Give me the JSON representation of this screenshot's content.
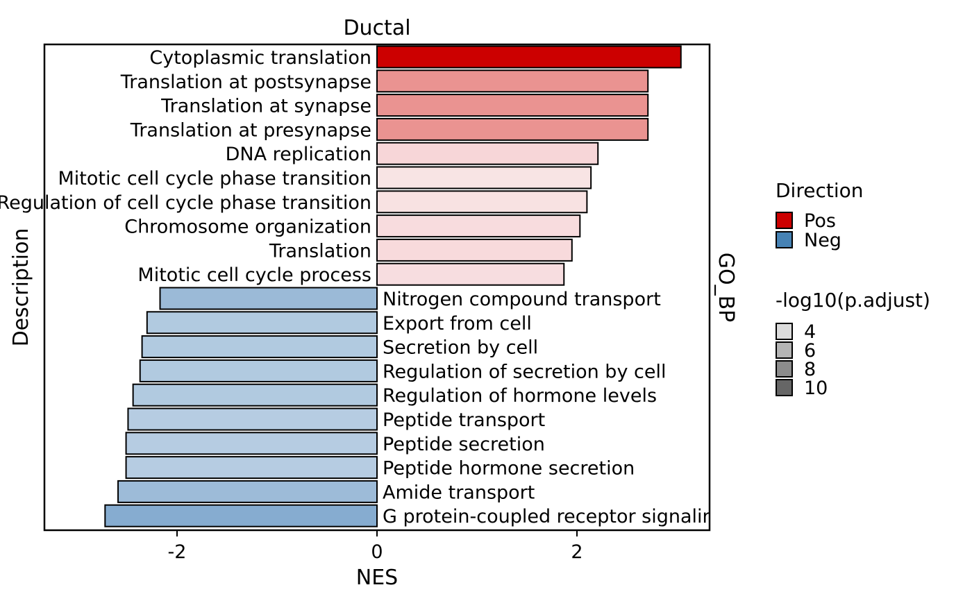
{
  "chart_data": {
    "type": "bar",
    "orientation": "horizontal",
    "title": "Ductal",
    "facet_label": "GO_BP",
    "xlabel": "NES",
    "ylabel": "Description",
    "xlim": [
      -3.33,
      3.33
    ],
    "xticks": [
      -2,
      0,
      2
    ],
    "xtick_labels": [
      "-2",
      "0",
      "2"
    ],
    "grid": false,
    "legend_position": "right",
    "bars": [
      {
        "label": "Cytoplasmic translation",
        "value": 3.04,
        "direction": "Pos",
        "fill": "#cc0000"
      },
      {
        "label": "Translation at postsynapse",
        "value": 2.71,
        "direction": "Pos",
        "fill": "#ea9391"
      },
      {
        "label": "Translation at synapse",
        "value": 2.71,
        "direction": "Pos",
        "fill": "#ea9391"
      },
      {
        "label": "Translation at presynapse",
        "value": 2.71,
        "direction": "Pos",
        "fill": "#ea9391"
      },
      {
        "label": "DNA replication",
        "value": 2.21,
        "direction": "Pos",
        "fill": "#f7d6d8"
      },
      {
        "label": "Mitotic cell cycle phase transition",
        "value": 2.14,
        "direction": "Pos",
        "fill": "#f8e4e4"
      },
      {
        "label": "Regulation of cell cycle phase transition",
        "value": 2.1,
        "direction": "Pos",
        "fill": "#f8e2e2"
      },
      {
        "label": "Chromosome organization",
        "value": 2.03,
        "direction": "Pos",
        "fill": "#f8dcde"
      },
      {
        "label": "Translation",
        "value": 1.95,
        "direction": "Pos",
        "fill": "#f8dadc"
      },
      {
        "label": "Mitotic cell cycle process",
        "value": 1.87,
        "direction": "Pos",
        "fill": "#f7dde0"
      },
      {
        "label": "Nitrogen compound transport",
        "value": -2.17,
        "direction": "Neg",
        "fill": "#9bbad7"
      },
      {
        "label": "Export from cell",
        "value": -2.3,
        "direction": "Neg",
        "fill": "#b1cae0"
      },
      {
        "label": "Secretion by cell",
        "value": -2.35,
        "direction": "Neg",
        "fill": "#b1cae0"
      },
      {
        "label": "Regulation of secretion by cell",
        "value": -2.37,
        "direction": "Neg",
        "fill": "#b1cae0"
      },
      {
        "label": "Regulation of hormone levels",
        "value": -2.44,
        "direction": "Neg",
        "fill": "#b1cae0"
      },
      {
        "label": "Peptide transport",
        "value": -2.49,
        "direction": "Neg",
        "fill": "#b6cce2"
      },
      {
        "label": "Peptide secretion",
        "value": -2.51,
        "direction": "Neg",
        "fill": "#b6cce2"
      },
      {
        "label": "Peptide hormone secretion",
        "value": -2.51,
        "direction": "Neg",
        "fill": "#b6cce2"
      },
      {
        "label": "Amide transport",
        "value": -2.59,
        "direction": "Neg",
        "fill": "#9dbbd8"
      },
      {
        "label": "G protein-coupled receptor signaling pathway",
        "value": -2.72,
        "direction": "Neg",
        "fill": "#86acd0"
      }
    ],
    "legend_direction": {
      "title": "Direction",
      "items": [
        {
          "label": "Pos",
          "color": "#cc0000"
        },
        {
          "label": "Neg",
          "color": "#4682b4"
        }
      ]
    },
    "legend_alpha": {
      "title": "-log10(p.adjust)",
      "items": [
        {
          "label": "4",
          "color": "#dcdcdc"
        },
        {
          "label": "6",
          "color": "#b4b4b4"
        },
        {
          "label": "8",
          "color": "#8c8c8c"
        },
        {
          "label": "10",
          "color": "#666666"
        }
      ]
    }
  }
}
